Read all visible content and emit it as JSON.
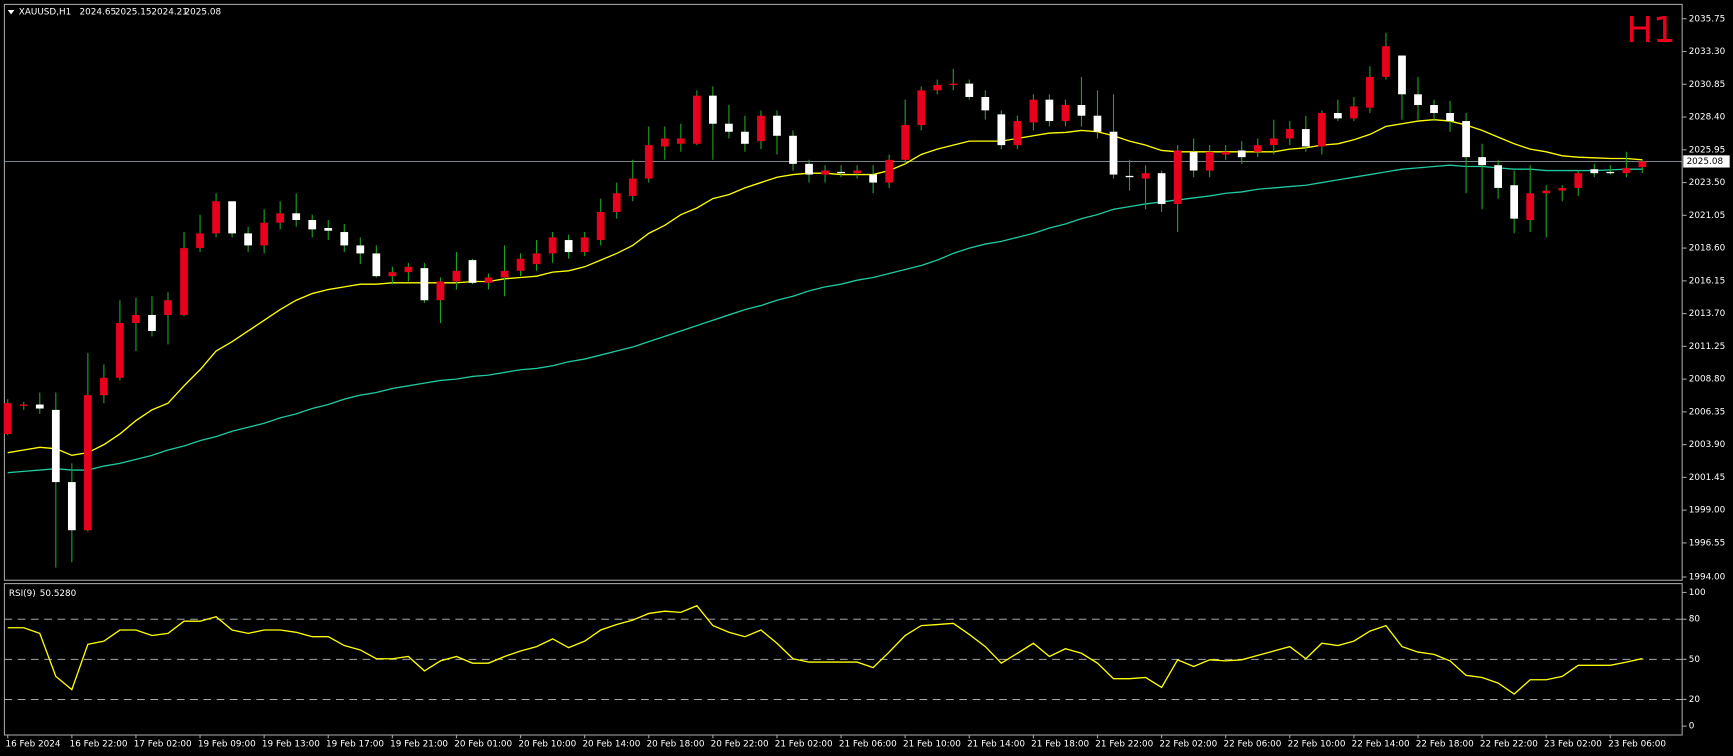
{
  "chart_data": {
    "type": "candlestick",
    "symbol": "XAUUSD,H1",
    "timeframe": "H1",
    "categories": [
      "16 Feb 2024",
      null,
      null,
      null,
      "16 Feb 22:00",
      null,
      null,
      null,
      "17 Feb 02:00",
      null,
      null,
      null,
      "19 Feb 09:00",
      null,
      null,
      null,
      "19 Feb 13:00",
      null,
      null,
      null,
      "19 Feb 17:00",
      null,
      null,
      null,
      "19 Feb 21:00",
      null,
      null,
      null,
      "20 Feb 01:00",
      null,
      null,
      null,
      "20 Feb 10:00",
      null,
      null,
      null,
      "20 Feb 14:00",
      null,
      null,
      null,
      "20 Feb 18:00",
      null,
      null,
      null,
      "20 Feb 22:00",
      null,
      null,
      null,
      "21 Feb 02:00",
      null,
      null,
      null,
      "21 Feb 06:00",
      null,
      null,
      null,
      "21 Feb 10:00",
      null,
      null,
      null,
      "21 Feb 14:00",
      null,
      null,
      null,
      "21 Feb 18:00",
      null,
      null,
      null,
      "21 Feb 22:00",
      null,
      null,
      null,
      "22 Feb 02:00",
      null,
      null,
      null,
      "22 Feb 06:00",
      null,
      null,
      null,
      "22 Feb 10:00",
      null,
      null,
      null,
      "22 Feb 14:00",
      null,
      null,
      null,
      "22 Feb 18:00",
      null,
      null,
      null,
      "22 Feb 22:00",
      null,
      null,
      null,
      "23 Feb 02:00",
      null,
      null,
      null,
      "23 Feb 06:00",
      null,
      null
    ],
    "open": [
      2004.7,
      2006.8,
      2006.9,
      2006.5,
      2001.1,
      1997.5,
      2007.6,
      2008.9,
      2013.0,
      2013.6,
      2013.6,
      2013.6,
      2018.6,
      2019.7,
      2022.1,
      2019.7,
      2018.8,
      2020.5,
      2021.2,
      2020.7,
      2020.1,
      2019.8,
      2018.8,
      2018.2,
      2016.5,
      2016.8,
      2017.1,
      2014.7,
      2016.1,
      2017.7,
      2016.0,
      2016.4,
      2016.9,
      2017.4,
      2018.2,
      2019.2,
      2018.3,
      2019.2,
      2021.3,
      2022.5,
      2023.8,
      2026.2,
      2026.4,
      2026.4,
      2030.0,
      2027.9,
      2027.3,
      2026.6,
      2028.5,
      2027.0,
      2024.9,
      2024.1,
      2024.3,
      2024.2,
      2024.1,
      2023.5,
      2025.2,
      2027.8,
      2030.4,
      2030.8,
      2030.9,
      2029.9,
      2028.6,
      2026.3,
      2028.0,
      2029.7,
      2028.1,
      2029.3,
      2028.5,
      2027.3,
      2024.0,
      2023.8,
      2024.2,
      2021.9,
      2025.8,
      2024.4,
      2025.6,
      2025.9,
      2025.8,
      2026.3,
      2026.8,
      2027.5,
      2026.2,
      2028.7,
      2028.3,
      2029.1,
      2031.4,
      2033.0,
      2030.1,
      2029.3,
      2028.7,
      2028.1,
      2025.4,
      2024.8,
      2023.3,
      2020.7,
      2022.7,
      2022.9,
      2023.1,
      2024.5,
      2024.3,
      2024.2,
      2024.65
    ],
    "high": [
      2007.3,
      2007.1,
      2007.8,
      2007.8,
      2002.5,
      2010.75,
      2009.9,
      2014.7,
      2014.9,
      2015.0,
      2015.3,
      2019.8,
      2021.1,
      2022.7,
      2022.1,
      2020.2,
      2021.5,
      2022.1,
      2022.7,
      2021.1,
      2020.7,
      2020.4,
      2019.4,
      2018.8,
      2017.2,
      2017.5,
      2017.5,
      2016.4,
      2018.3,
      2017.8,
      2016.7,
      2018.8,
      2018.2,
      2019.2,
      2019.8,
      2019.6,
      2019.8,
      2022.3,
      2023.5,
      2025.2,
      2027.7,
      2027.7,
      2027.9,
      2030.4,
      2030.7,
      2029.3,
      2028.5,
      2028.9,
      2028.9,
      2027.4,
      2025.2,
      2024.8,
      2024.8,
      2024.8,
      2024.8,
      2025.6,
      2029.7,
      2030.7,
      2031.2,
      2032.0,
      2031.2,
      2030.4,
      2028.9,
      2028.5,
      2030.1,
      2030.1,
      2029.7,
      2031.4,
      2030.4,
      2030.1,
      2025.2,
      2024.8,
      2024.4,
      2026.3,
      2026.8,
      2026.3,
      2026.3,
      2026.6,
      2026.8,
      2028.2,
      2028.1,
      2028.5,
      2028.9,
      2029.7,
      2029.9,
      2032.2,
      2034.7,
      2033.0,
      2031.4,
      2029.7,
      2029.6,
      2028.7,
      2026.4,
      2025.2,
      2024.4,
      2024.8,
      2023.3,
      2023.3,
      2024.4,
      2024.9,
      2024.8,
      2025.8,
      2025.15
    ],
    "low": [
      2004.6,
      2006.5,
      2006.2,
      1994.7,
      1995.1,
      1997.4,
      2007.0,
      2008.7,
      2010.9,
      2012.0,
      2011.4,
      2013.5,
      2018.3,
      2019.4,
      2019.4,
      2018.3,
      2018.2,
      2020.0,
      2020.2,
      2019.4,
      2019.2,
      2018.3,
      2017.4,
      2016.4,
      2015.9,
      2016.1,
      2014.5,
      2013.0,
      2015.5,
      2015.9,
      2015.5,
      2015.0,
      2016.5,
      2016.9,
      2017.5,
      2017.8,
      2018.0,
      2018.8,
      2020.8,
      2022.1,
      2023.5,
      2025.2,
      2025.8,
      2026.3,
      2025.2,
      2026.8,
      2025.8,
      2026.0,
      2025.6,
      2024.4,
      2023.5,
      2023.5,
      2023.9,
      2023.8,
      2022.7,
      2023.1,
      2024.9,
      2027.4,
      2030.1,
      2030.4,
      2029.7,
      2028.2,
      2026.0,
      2026.0,
      2027.4,
      2027.7,
      2027.7,
      2027.7,
      2026.8,
      2023.8,
      2022.9,
      2021.5,
      2021.3,
      2019.8,
      2023.9,
      2023.9,
      2025.2,
      2024.9,
      2025.4,
      2025.6,
      2026.3,
      2025.8,
      2025.6,
      2028.1,
      2028.1,
      2028.7,
      2031.2,
      2028.2,
      2028.2,
      2028.1,
      2027.3,
      2022.7,
      2021.5,
      2022.3,
      2019.7,
      2019.8,
      2019.4,
      2022.1,
      2022.5,
      2023.9,
      2024.1,
      2023.9,
      2024.21
    ],
    "close": [
      2007.0,
      2006.9,
      2006.6,
      2001.1,
      1997.5,
      2007.6,
      2008.9,
      2013.0,
      2013.6,
      2012.4,
      2014.7,
      2018.6,
      2019.7,
      2022.1,
      2019.7,
      2018.8,
      2020.5,
      2021.2,
      2020.7,
      2020.0,
      2019.9,
      2018.8,
      2018.2,
      2016.5,
      2016.8,
      2017.2,
      2014.7,
      2016.1,
      2016.9,
      2016.0,
      2016.4,
      2016.9,
      2017.8,
      2018.2,
      2019.4,
      2018.3,
      2019.4,
      2021.3,
      2022.7,
      2023.8,
      2026.3,
      2026.8,
      2026.8,
      2030.0,
      2027.9,
      2027.3,
      2026.4,
      2028.5,
      2027.0,
      2024.9,
      2024.1,
      2024.4,
      2024.2,
      2024.4,
      2023.5,
      2025.2,
      2027.8,
      2030.4,
      2030.8,
      2030.9,
      2029.9,
      2028.9,
      2026.3,
      2028.1,
      2029.7,
      2028.1,
      2029.3,
      2028.5,
      2027.3,
      2024.1,
      2023.9,
      2024.2,
      2021.9,
      2025.9,
      2024.4,
      2025.8,
      2025.8,
      2025.4,
      2026.3,
      2026.8,
      2027.5,
      2026.2,
      2028.7,
      2028.3,
      2029.2,
      2031.4,
      2033.7,
      2030.1,
      2029.3,
      2028.7,
      2028.1,
      2025.4,
      2024.8,
      2023.1,
      2020.8,
      2022.7,
      2022.9,
      2023.1,
      2024.2,
      2024.2,
      2024.2,
      2024.6,
      2025.08
    ],
    "up_color": "#e8001c",
    "down_color": "#ffffff",
    "wick_color": "#1fa31f",
    "overlays": [
      {
        "color": "#ffff00",
        "values": [
          2003.3,
          2003.5,
          2003.7,
          2003.6,
          2003.1,
          2003.3,
          2003.9,
          2004.7,
          2005.7,
          2006.5,
          2007.0,
          2008.3,
          2009.5,
          2010.9,
          2011.6,
          2012.4,
          2013.2,
          2014.0,
          2014.7,
          2015.2,
          2015.5,
          2015.7,
          2015.9,
          2015.9,
          2016.0,
          2016.0,
          2016.0,
          2016.0,
          2016.0,
          2016.1,
          2016.1,
          2016.3,
          2016.4,
          2016.5,
          2016.8,
          2016.9,
          2017.2,
          2017.7,
          2018.2,
          2018.8,
          2019.7,
          2020.3,
          2021.1,
          2021.6,
          2022.3,
          2022.6,
          2023.1,
          2023.5,
          2023.9,
          2024.1,
          2024.2,
          2024.2,
          2024.1,
          2024.1,
          2024.1,
          2024.4,
          2024.9,
          2025.6,
          2026.0,
          2026.3,
          2026.6,
          2026.6,
          2026.6,
          2026.8,
          2027.0,
          2027.2,
          2027.25,
          2027.4,
          2027.3,
          2027.0,
          2026.6,
          2026.3,
          2025.9,
          2025.8,
          2025.8,
          2025.8,
          2025.8,
          2025.8,
          2025.8,
          2025.8,
          2026.0,
          2026.1,
          2026.3,
          2026.4,
          2026.7,
          2027.1,
          2027.7,
          2027.9,
          2028.1,
          2028.2,
          2028.1,
          2027.8,
          2027.4,
          2026.9,
          2026.4,
          2026.0,
          2025.8,
          2025.5,
          2025.4,
          2025.35,
          2025.3,
          2025.3,
          2025.2
        ]
      },
      {
        "color": "#1ec8a0",
        "values": [
          2001.8,
          2001.9,
          2002.0,
          2002.1,
          2002.0,
          2002.0,
          2002.3,
          2002.5,
          2002.8,
          2003.1,
          2003.5,
          2003.8,
          2004.2,
          2004.5,
          2004.9,
          2005.2,
          2005.5,
          2005.9,
          2006.2,
          2006.6,
          2006.9,
          2007.3,
          2007.6,
          2007.8,
          2008.1,
          2008.3,
          2008.5,
          2008.7,
          2008.8,
          2009.0,
          2009.1,
          2009.3,
          2009.5,
          2009.6,
          2009.8,
          2010.1,
          2010.3,
          2010.6,
          2010.9,
          2011.2,
          2011.6,
          2012.0,
          2012.4,
          2012.8,
          2013.2,
          2013.6,
          2014.0,
          2014.3,
          2014.7,
          2015.0,
          2015.4,
          2015.7,
          2015.9,
          2016.2,
          2016.4,
          2016.7,
          2017.0,
          2017.3,
          2017.7,
          2018.2,
          2018.6,
          2018.9,
          2019.1,
          2019.4,
          2019.7,
          2020.1,
          2020.4,
          2020.8,
          2021.1,
          2021.5,
          2021.7,
          2021.9,
          2022.05,
          2022.2,
          2022.35,
          2022.5,
          2022.7,
          2022.8,
          2023.0,
          2023.1,
          2023.2,
          2023.3,
          2023.5,
          2023.7,
          2023.9,
          2024.1,
          2024.3,
          2024.5,
          2024.6,
          2024.7,
          2024.8,
          2024.7,
          2024.7,
          2024.6,
          2024.5,
          2024.5,
          2024.4,
          2024.4,
          2024.4,
          2024.4,
          2024.45,
          2024.5,
          2024.5
        ]
      }
    ],
    "ylim": [
      1993.84,
      2036.74
    ],
    "yticks": [
      2035.75,
      {
        "value": 2033.3,
        "label": "2033.30"
      },
      2030.85,
      {
        "value": 2028.4,
        "label": "2028.40"
      },
      2025.95,
      {
        "value": 2023.5,
        "label": "2023.50"
      },
      2021.05,
      {
        "value": 2018.6,
        "label": "2018.60"
      },
      2016.15,
      {
        "value": 2013.7,
        "label": "2013.70"
      },
      2011.25,
      {
        "value": 2008.8,
        "label": "2008.80"
      },
      2006.35,
      {
        "value": 2003.9,
        "label": "2003.90"
      },
      2001.45,
      {
        "value": 1999,
        "label": "1999.00"
      },
      1996.55,
      {
        "value": 1994,
        "label": "1994.00"
      }
    ],
    "indicator": {
      "name": "RSI(9)",
      "color": "#ffff00",
      "values": [
        73.6,
        73.6,
        69.4,
        37.2,
        27.3,
        61.2,
        63.6,
        71.9,
        71.9,
        67.8,
        69.4,
        78.5,
        78.5,
        81.8,
        71.9,
        69.4,
        71.9,
        71.9,
        70.2,
        66.9,
        66.9,
        60.3,
        57.0,
        50.4,
        50.4,
        52.1,
        41.3,
        48.8,
        52.1,
        47.1,
        47.1,
        52.1,
        56.2,
        59.5,
        65.3,
        58.7,
        63.6,
        71.9,
        76.0,
        79.3,
        84.3,
        86.0,
        85.1,
        90.1,
        75.2,
        70.2,
        66.9,
        71.9,
        62.0,
        50.4,
        47.9,
        47.9,
        47.9,
        47.9,
        43.8,
        55.4,
        67.8,
        75.2,
        76.0,
        76.9,
        68.6,
        59.5,
        47.1,
        54.5,
        62.0,
        52.1,
        57.9,
        54.5,
        47.1,
        35.5,
        35.5,
        36.4,
        28.9,
        49.6,
        44.6,
        49.6,
        48.8,
        49.6,
        52.9,
        56.2,
        59.5,
        50.4,
        62.0,
        60.3,
        63.6,
        71.1,
        75.2,
        59.5,
        55.4,
        53.7,
        48.8,
        38.0,
        36.4,
        32.2,
        24.0,
        34.7,
        34.7,
        37.2,
        45.5,
        45.5,
        45.5,
        47.9,
        50.528
      ],
      "value_labels": [
        null,
        null,
        null,
        null,
        null,
        null,
        null,
        null,
        null,
        null,
        null,
        null,
        null,
        null,
        null,
        null,
        null,
        null,
        null,
        null,
        null,
        null,
        null,
        null,
        null,
        null,
        null,
        null,
        null,
        null,
        null,
        null,
        null,
        null,
        null,
        null,
        null,
        null,
        null,
        null,
        null,
        null,
        null,
        null,
        null,
        null,
        null,
        null,
        null,
        null,
        null,
        null,
        null,
        null,
        null,
        null,
        null,
        null,
        null,
        null,
        null,
        null,
        null,
        null,
        null,
        null,
        null,
        null,
        null,
        null,
        null,
        null,
        null,
        null,
        null,
        null,
        null,
        null,
        null,
        null,
        null,
        null,
        null,
        null,
        null,
        null,
        null,
        null,
        null,
        null,
        null,
        null,
        null,
        null,
        null,
        null,
        null,
        null,
        null,
        null,
        null,
        null,
        "50.5280"
      ],
      "ylim": [
        -5,
        105
      ],
      "yticks": [
        100,
        80,
        50,
        20,
        0
      ],
      "levels": [
        80,
        50,
        20
      ]
    }
  }
}
